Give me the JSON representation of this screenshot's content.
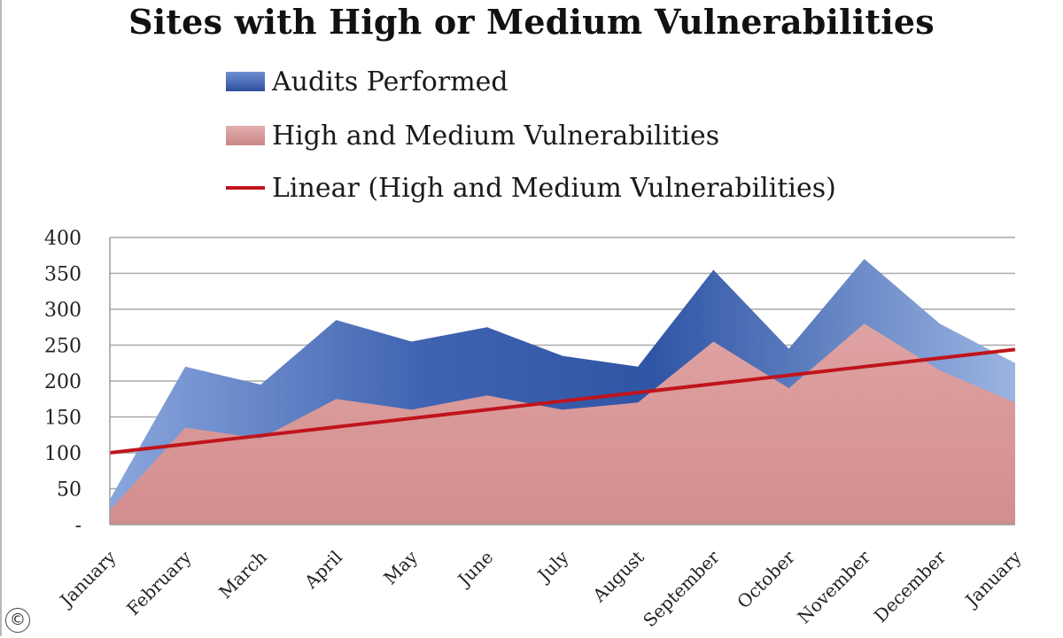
{
  "chart_data": {
    "type": "area",
    "title": "Sites with High or Medium Vulnerabilities",
    "categories": [
      "January",
      "February",
      "March",
      "April",
      "May",
      "June",
      "July",
      "August",
      "September",
      "October",
      "November",
      "December",
      "January"
    ],
    "series": [
      {
        "name": "Audits Performed",
        "type": "area",
        "color": "#4a6fb8",
        "values": [
          35,
          220,
          195,
          285,
          255,
          275,
          235,
          220,
          355,
          245,
          370,
          280,
          225
        ]
      },
      {
        "name": "High and Medium Vulnerabilities",
        "type": "area",
        "color": "#d99a9a",
        "values": [
          20,
          135,
          120,
          175,
          160,
          180,
          160,
          170,
          255,
          190,
          280,
          215,
          170
        ]
      },
      {
        "name": "Linear (High and Medium Vulnerabilities)",
        "type": "line",
        "color": "#c0141c",
        "values": [
          100,
          112,
          124,
          136,
          148,
          160,
          172,
          184,
          196,
          208,
          220,
          232,
          244
        ]
      }
    ],
    "y_ticks": [
      "-",
      "50",
      "100",
      "150",
      "200",
      "250",
      "300",
      "350",
      "400"
    ],
    "ylim": [
      0,
      400
    ],
    "grid": true,
    "legend_position": "top"
  },
  "copyright_symbol": "©"
}
